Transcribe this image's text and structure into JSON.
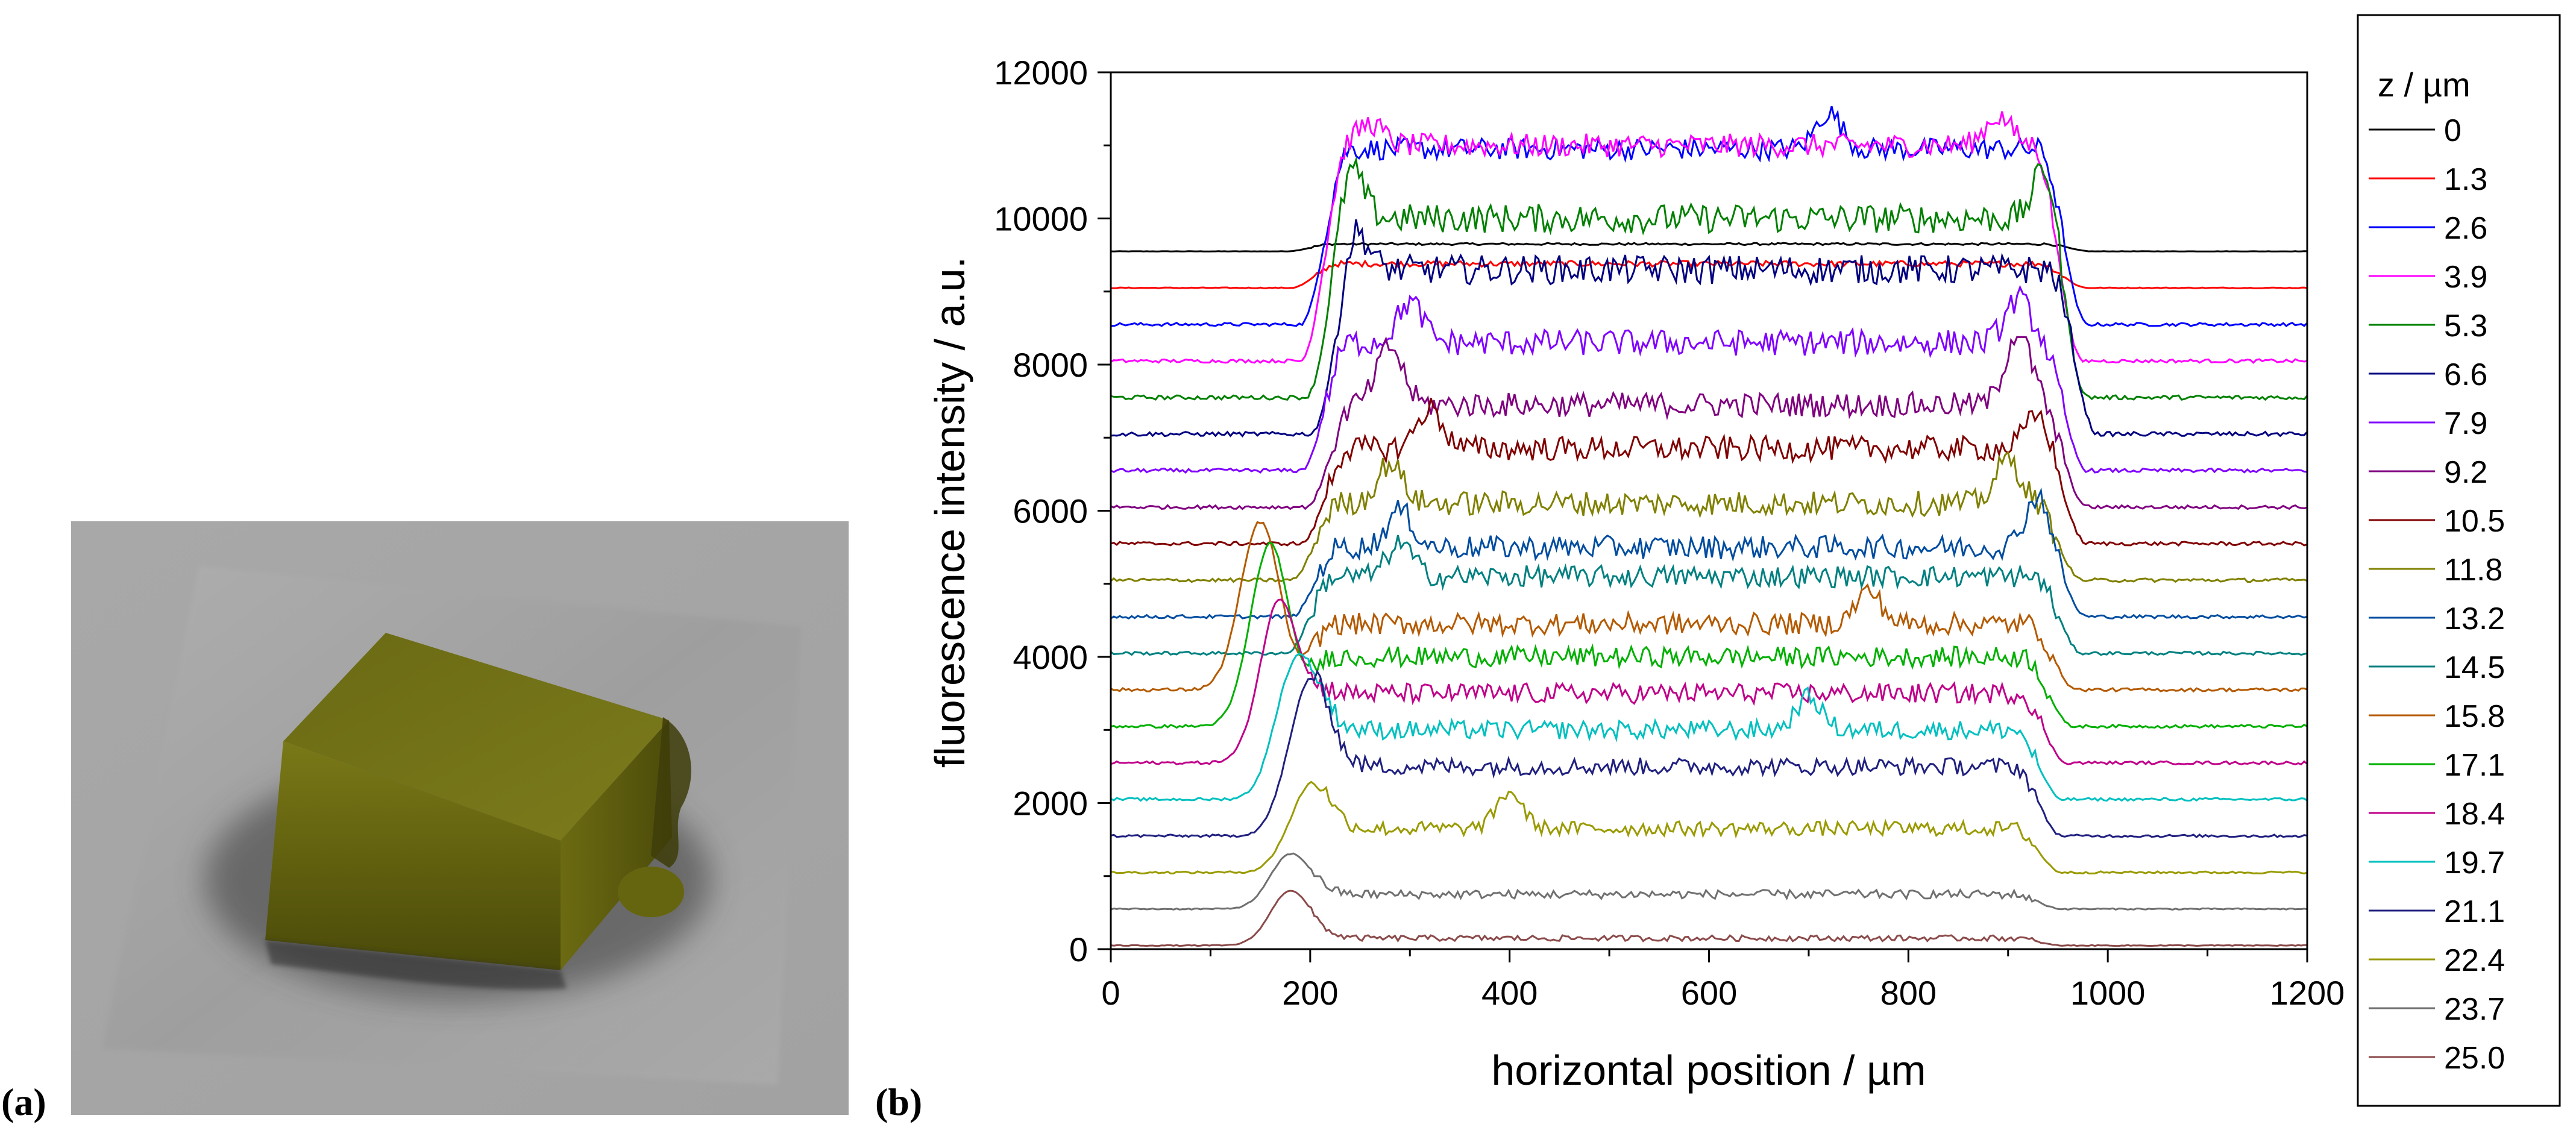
{
  "panel_a": {
    "letter": "(a)",
    "colors": {
      "background": "#a9a9a9",
      "crystal": "#6b6a14",
      "crystal_top": "#75741a",
      "shadow": "#404040"
    }
  },
  "panel_b": {
    "letter": "(b)"
  },
  "chart_data": {
    "type": "line",
    "title": "",
    "xlabel": "horizontal position / µm",
    "ylabel": "fluorescence intensity / a.u.",
    "xlim": [
      0,
      1200
    ],
    "ylim": [
      0,
      12000
    ],
    "xticks": [
      0,
      200,
      400,
      600,
      800,
      1000,
      1200
    ],
    "yticks": [
      0,
      2000,
      4000,
      6000,
      8000,
      10000,
      12000
    ],
    "grid": false,
    "legend_title": "z / µm",
    "legend_position": "right, outside",
    "series": [
      {
        "name": "0",
        "color": "#000000",
        "baseline": 9550,
        "plateau": 9650,
        "left_edge": 200,
        "right_edge": 960,
        "peaks": [],
        "noise": 15
      },
      {
        "name": "1.3",
        "color": "#ff0000",
        "baseline": 9050,
        "plateau": 9380,
        "left_edge": 205,
        "right_edge": 955,
        "peaks": [],
        "noise": 40
      },
      {
        "name": "2.6",
        "color": "#0000ff",
        "baseline": 8550,
        "plateau": 10950,
        "left_edge": 215,
        "right_edge": 955,
        "peaks": [
          {
            "x": 720,
            "y": 11450
          }
        ],
        "noise": 150
      },
      {
        "name": "3.9",
        "color": "#ff00ff",
        "baseline": 8050,
        "plateau": 11000,
        "left_edge": 215,
        "right_edge": 950,
        "peaks": [
          {
            "x": 260,
            "y": 11300
          },
          {
            "x": 890,
            "y": 11400
          }
        ],
        "noise": 160
      },
      {
        "name": "5.3",
        "color": "#008000",
        "baseline": 7550,
        "plateau": 10000,
        "left_edge": 220,
        "right_edge": 955,
        "peaks": [
          {
            "x": 240,
            "y": 10700
          },
          {
            "x": 940,
            "y": 10800
          }
        ],
        "noise": 200
      },
      {
        "name": "6.6",
        "color": "#000080",
        "baseline": 7050,
        "plateau": 9300,
        "left_edge": 225,
        "right_edge": 965,
        "peaks": [
          {
            "x": 245,
            "y": 9850
          }
        ],
        "noise": 200
      },
      {
        "name": "7.9",
        "color": "#8000ff",
        "baseline": 6550,
        "plateau": 8300,
        "left_edge": 215,
        "right_edge": 955,
        "peaks": [
          {
            "x": 300,
            "y": 8850
          },
          {
            "x": 910,
            "y": 8900
          }
        ],
        "noise": 180
      },
      {
        "name": "9.2",
        "color": "#800080",
        "baseline": 6050,
        "plateau": 7450,
        "left_edge": 220,
        "right_edge": 955,
        "peaks": [
          {
            "x": 280,
            "y": 8250
          },
          {
            "x": 910,
            "y": 8450
          }
        ],
        "noise": 170
      },
      {
        "name": "10.5",
        "color": "#800000",
        "baseline": 5550,
        "plateau": 6850,
        "left_edge": 215,
        "right_edge": 955,
        "peaks": [
          {
            "x": 320,
            "y": 7400
          },
          {
            "x": 930,
            "y": 7300
          }
        ],
        "noise": 170
      },
      {
        "name": "11.8",
        "color": "#808000",
        "baseline": 5050,
        "plateau": 6100,
        "left_edge": 205,
        "right_edge": 950,
        "peaks": [
          {
            "x": 280,
            "y": 6650
          },
          {
            "x": 900,
            "y": 6700
          }
        ],
        "noise": 170
      },
      {
        "name": "13.2",
        "color": "#004da0",
        "baseline": 4550,
        "plateau": 5500,
        "left_edge": 205,
        "right_edge": 955,
        "peaks": [
          {
            "x": 290,
            "y": 6000
          },
          {
            "x": 930,
            "y": 6200
          }
        ],
        "noise": 160
      },
      {
        "name": "14.5",
        "color": "#008080",
        "baseline": 4050,
        "plateau": 5100,
        "left_edge": 200,
        "right_edge": 950,
        "peaks": [
          {
            "x": 290,
            "y": 5550
          }
        ],
        "noise": 150
      },
      {
        "name": "15.8",
        "color": "#b45a00",
        "baseline": 3550,
        "plateau": 4450,
        "left_edge": 200,
        "right_edge": 945,
        "peaks": [
          {
            "x": 150,
            "y": 5850
          },
          {
            "x": 760,
            "y": 4900
          }
        ],
        "noise": 150
      },
      {
        "name": "17.1",
        "color": "#00b000",
        "baseline": 3050,
        "plateau": 4000,
        "left_edge": 200,
        "right_edge": 940,
        "peaks": [
          {
            "x": 160,
            "y": 5550
          }
        ],
        "noise": 140
      },
      {
        "name": "18.4",
        "color": "#c0008a",
        "baseline": 2550,
        "plateau": 3500,
        "left_edge": 200,
        "right_edge": 935,
        "peaks": [
          {
            "x": 170,
            "y": 4800
          }
        ],
        "noise": 140
      },
      {
        "name": "19.7",
        "color": "#00c0c0",
        "baseline": 2050,
        "plateau": 3000,
        "left_edge": 200,
        "right_edge": 930,
        "peaks": [
          {
            "x": 185,
            "y": 3900
          },
          {
            "x": 700,
            "y": 3450
          }
        ],
        "noise": 130
      },
      {
        "name": "21.1",
        "color": "#202080",
        "baseline": 1550,
        "plateau": 2500,
        "left_edge": 200,
        "right_edge": 930,
        "peaks": [
          {
            "x": 195,
            "y": 3300
          }
        ],
        "noise": 120
      },
      {
        "name": "22.4",
        "color": "#9a9a00",
        "baseline": 1050,
        "plateau": 1650,
        "left_edge": 200,
        "right_edge": 930,
        "peaks": [
          {
            "x": 195,
            "y": 2000
          },
          {
            "x": 400,
            "y": 2150
          }
        ],
        "noise": 100
      },
      {
        "name": "23.7",
        "color": "#707070",
        "baseline": 550,
        "plateau": 750,
        "left_edge": 200,
        "right_edge": 930,
        "peaks": [
          {
            "x": 180,
            "y": 1300
          }
        ],
        "noise": 60
      },
      {
        "name": "25.0",
        "color": "#8b4a4a",
        "baseline": 50,
        "plateau": 150,
        "left_edge": 200,
        "right_edge": 930,
        "peaks": [
          {
            "x": 180,
            "y": 800
          }
        ],
        "noise": 40
      }
    ]
  }
}
